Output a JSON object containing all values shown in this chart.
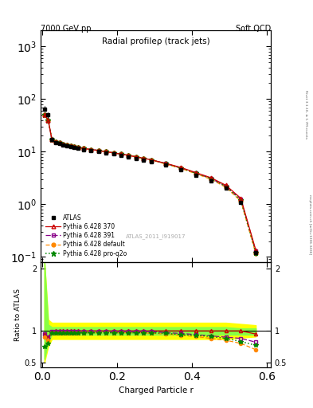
{
  "title_top_left": "7000 GeV pp",
  "title_top_right": "Soft QCD",
  "main_title": "Radial profileρ (track jets)",
  "watermark": "ATLAS_2011_I919017",
  "right_label_top": "Rivet 3.1.10, ≥ 1.7M events",
  "right_label_bottom": "mcplots.cern.ch [arXiv:1306.3436]",
  "xlabel": "Charged Particle r",
  "ylabel_bottom": "Ratio to ATLAS",
  "r_values": [
    0.005,
    0.015,
    0.025,
    0.035,
    0.045,
    0.055,
    0.065,
    0.075,
    0.085,
    0.095,
    0.11,
    0.13,
    0.15,
    0.17,
    0.19,
    0.21,
    0.23,
    0.25,
    0.27,
    0.29,
    0.33,
    0.37,
    0.41,
    0.45,
    0.49,
    0.53,
    0.57
  ],
  "atlas_y": [
    65,
    50,
    17,
    15,
    14.5,
    13.5,
    13,
    12.5,
    12,
    11.5,
    11,
    10.5,
    10,
    9.5,
    9,
    8.5,
    8,
    7.5,
    7,
    6.5,
    5.5,
    4.5,
    3.5,
    2.8,
    2.0,
    1.1,
    0.12
  ],
  "atlas_yerr": [
    8,
    6,
    1.5,
    1.2,
    1.0,
    0.9,
    0.8,
    0.7,
    0.7,
    0.6,
    0.6,
    0.5,
    0.5,
    0.5,
    0.4,
    0.4,
    0.4,
    0.3,
    0.3,
    0.3,
    0.3,
    0.2,
    0.2,
    0.15,
    0.12,
    0.08,
    0.015
  ],
  "py370_y": [
    50,
    40,
    17,
    15.5,
    15,
    14,
    13.5,
    13,
    12.5,
    12,
    11.5,
    11,
    10.5,
    10,
    9.5,
    9,
    8.5,
    8,
    7.5,
    7,
    6.0,
    5.0,
    4.0,
    3.2,
    2.3,
    1.3,
    0.135
  ],
  "py391_y": [
    50,
    40,
    17,
    15.5,
    15,
    14,
    13.5,
    13,
    12.5,
    12,
    11.5,
    11,
    10.5,
    10,
    9.5,
    9,
    8.5,
    8,
    7.5,
    7,
    5.9,
    4.9,
    3.9,
    3.1,
    2.2,
    1.25,
    0.128
  ],
  "pydef_y": [
    50,
    40,
    17,
    15.5,
    15,
    14,
    13.5,
    13,
    12.5,
    12,
    11.5,
    11,
    10.5,
    10,
    9.5,
    9,
    8.5,
    8,
    7.5,
    7,
    5.8,
    4.8,
    3.8,
    3.0,
    2.1,
    1.15,
    0.115
  ],
  "pyq2o_y": [
    50,
    40,
    17,
    15.5,
    15,
    14,
    13.5,
    13,
    12.5,
    12,
    11.5,
    11,
    10.5,
    10,
    9.5,
    9,
    8.5,
    8,
    7.5,
    7,
    5.9,
    4.9,
    3.9,
    3.1,
    2.2,
    1.2,
    0.122
  ],
  "ratio_py370": [
    0.95,
    0.9,
    0.99,
    1.0,
    1.0,
    1.0,
    1.0,
    1.0,
    1.0,
    1.0,
    1.0,
    1.0,
    1.0,
    1.0,
    1.0,
    1.0,
    1.0,
    1.0,
    1.0,
    1.0,
    1.0,
    1.0,
    1.0,
    1.0,
    1.0,
    1.0,
    0.95
  ],
  "ratio_py391": [
    0.95,
    0.9,
    0.99,
    0.99,
    0.99,
    0.99,
    0.99,
    0.99,
    0.99,
    0.99,
    0.99,
    0.99,
    0.99,
    0.99,
    0.99,
    0.99,
    0.99,
    0.99,
    0.99,
    0.99,
    0.97,
    0.96,
    0.94,
    0.92,
    0.9,
    0.88,
    0.82
  ],
  "ratio_pydef": [
    0.9,
    0.85,
    0.97,
    0.97,
    0.97,
    0.97,
    0.97,
    0.97,
    0.97,
    0.97,
    0.97,
    0.97,
    0.97,
    0.97,
    0.97,
    0.97,
    0.97,
    0.97,
    0.97,
    0.96,
    0.95,
    0.93,
    0.91,
    0.88,
    0.85,
    0.8,
    0.7
  ],
  "ratio_pyq2o": [
    0.75,
    0.8,
    0.97,
    0.97,
    0.97,
    0.97,
    0.97,
    0.97,
    0.97,
    0.97,
    0.97,
    0.97,
    0.97,
    0.97,
    0.97,
    0.97,
    0.97,
    0.97,
    0.97,
    0.97,
    0.96,
    0.94,
    0.93,
    0.91,
    0.88,
    0.83,
    0.77
  ],
  "ratio_band_yellow_lo": [
    0.5,
    0.75,
    0.87,
    0.87,
    0.87,
    0.87,
    0.87,
    0.87,
    0.87,
    0.87,
    0.87,
    0.87,
    0.87,
    0.87,
    0.87,
    0.87,
    0.87,
    0.87,
    0.87,
    0.87,
    0.87,
    0.87,
    0.87,
    0.87,
    0.87,
    0.89,
    0.91
  ],
  "ratio_band_yellow_hi": [
    2.1,
    1.18,
    1.13,
    1.13,
    1.13,
    1.13,
    1.13,
    1.13,
    1.13,
    1.13,
    1.13,
    1.13,
    1.13,
    1.13,
    1.13,
    1.13,
    1.13,
    1.13,
    1.13,
    1.13,
    1.13,
    1.13,
    1.13,
    1.13,
    1.13,
    1.11,
    1.09
  ],
  "ratio_band_green_lo": [
    0.55,
    0.82,
    0.94,
    0.94,
    0.94,
    0.94,
    0.94,
    0.94,
    0.94,
    0.94,
    0.94,
    0.94,
    0.94,
    0.94,
    0.94,
    0.94,
    0.94,
    0.94,
    0.94,
    0.94,
    0.94,
    0.94,
    0.94,
    0.94,
    0.94,
    0.94,
    0.94
  ],
  "ratio_band_green_hi": [
    2.1,
    1.1,
    1.06,
    1.06,
    1.06,
    1.06,
    1.06,
    1.06,
    1.06,
    1.06,
    1.06,
    1.06,
    1.06,
    1.06,
    1.06,
    1.06,
    1.06,
    1.06,
    1.06,
    1.06,
    1.06,
    1.06,
    1.06,
    1.06,
    1.06,
    1.04,
    1.04
  ],
  "color_py370": "#cc0000",
  "color_py391": "#880088",
  "color_pydef": "#ff8800",
  "color_pyq2o": "#008800",
  "ylim_main": [
    0.08,
    2000
  ],
  "ylim_ratio": [
    0.42,
    2.1
  ],
  "xlim": [
    -0.005,
    0.61
  ]
}
